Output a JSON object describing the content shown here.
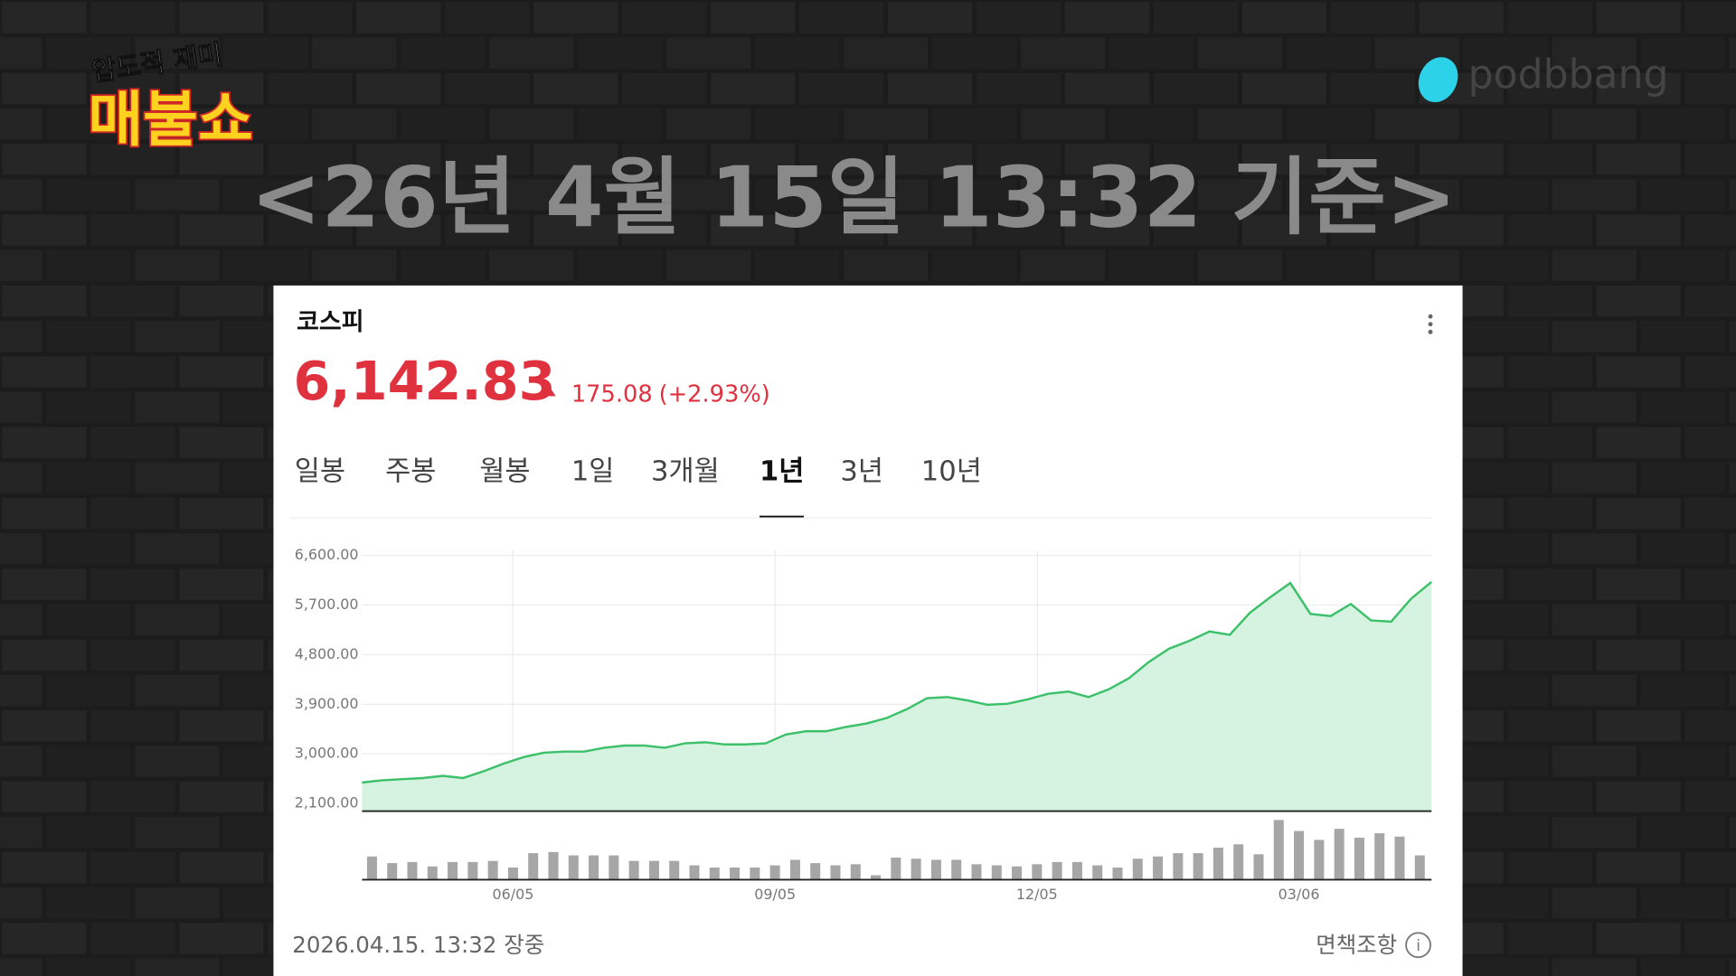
{
  "overlay": {
    "show_line1": "압도적 재미",
    "show_line2": "매불쇼",
    "brand": "podbbang",
    "headline": "<26년 4월 15일 13:32 기준>"
  },
  "card": {
    "name": "코스피",
    "price": "6,142.83",
    "change": "175.08",
    "change_pct": "(+2.93%)",
    "tabs": [
      {
        "label": "일봉",
        "active": false
      },
      {
        "label": "주봉",
        "active": false
      },
      {
        "label": "월봉",
        "active": false
      },
      {
        "label": "1일",
        "active": false
      },
      {
        "label": "3개월",
        "active": false
      },
      {
        "label": "1년",
        "active": true
      },
      {
        "label": "3년",
        "active": false
      },
      {
        "label": "10년",
        "active": false
      }
    ],
    "timestamp": "2026.04.15. 13:32 장중",
    "disclaimer": "면책조항"
  },
  "chart_data": [
    {
      "type": "line",
      "color": "#3cc06a",
      "fill": "#d6f2e0",
      "categories": [
        null,
        null,
        null,
        null,
        null,
        null,
        null,
        null,
        null,
        null,
        null,
        null,
        null,
        null,
        null,
        null,
        null,
        null,
        null,
        null,
        null,
        null,
        null,
        null,
        null,
        null,
        null,
        null,
        null,
        null,
        null,
        null,
        null,
        null,
        null,
        null,
        null,
        null,
        null,
        null,
        null,
        null,
        null,
        null,
        null,
        null,
        null,
        null,
        null,
        null,
        null,
        null,
        null,
        null
      ],
      "values": [
        2480,
        2520,
        2540,
        2560,
        2600,
        2560,
        2680,
        2820,
        2940,
        3020,
        3040,
        3040,
        3110,
        3150,
        3150,
        3110,
        3190,
        3210,
        3170,
        3170,
        3190,
        3350,
        3410,
        3410,
        3490,
        3550,
        3650,
        3810,
        4010,
        4030,
        3970,
        3890,
        3910,
        3990,
        4090,
        4130,
        4030,
        4170,
        4370,
        4670,
        4910,
        5050,
        5220,
        5160,
        5560,
        5840,
        6100,
        5540,
        5500,
        5720,
        5420,
        5400,
        5820,
        6120
      ],
      "ylim": [
        1960,
        6700
      ],
      "yticks": [
        {
          "value": 2100,
          "label": "2,100.00"
        },
        {
          "value": 3000,
          "label": "3,000.00"
        },
        {
          "value": 3900,
          "label": "3,900.00"
        },
        {
          "value": 4800,
          "label": "4,800.00"
        },
        {
          "value": 5700,
          "label": "5,700.00"
        },
        {
          "value": 6600,
          "label": "6,600.00"
        }
      ],
      "grid": true
    },
    {
      "type": "bar",
      "color": "#a6a6a6",
      "categories": [
        null,
        null,
        null,
        null,
        null,
        null,
        null,
        "06/05",
        null,
        null,
        null,
        null,
        null,
        null,
        null,
        null,
        null,
        null,
        null,
        null,
        "09/05",
        null,
        null,
        null,
        null,
        null,
        null,
        null,
        null,
        null,
        null,
        null,
        null,
        "12/05",
        null,
        null,
        null,
        null,
        null,
        null,
        null,
        null,
        null,
        null,
        null,
        null,
        "03/06",
        null,
        null,
        null,
        null,
        null,
        null
      ],
      "values": [
        21,
        15,
        16,
        12,
        16,
        16,
        17,
        11,
        24,
        25,
        22,
        22,
        22,
        17,
        17,
        17,
        13,
        11,
        11,
        11,
        13,
        18,
        15,
        13,
        14,
        4,
        20,
        19,
        18,
        18,
        14,
        13,
        12,
        14,
        16,
        16,
        13,
        11,
        19,
        21,
        24,
        24,
        29,
        32,
        23,
        54,
        44,
        36,
        46,
        38,
        42,
        39,
        22
      ],
      "ylim": [
        0,
        60
      ]
    }
  ]
}
